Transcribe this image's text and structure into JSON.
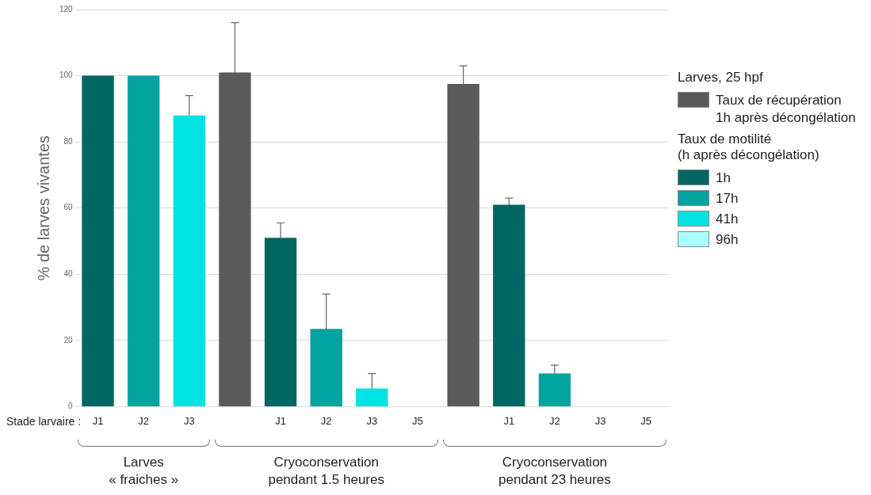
{
  "chart_data": {
    "type": "bar",
    "ylabel": "% de larves vivantes",
    "legend_title": "Larves, 25 hpf",
    "categories": [
      "J1",
      "J2",
      "J3",
      null,
      "J1",
      "J2",
      "J3",
      "J5",
      null,
      "J1",
      "J2",
      "J3",
      "J5"
    ],
    "series": [
      {
        "name": "Taux de récupération\n1h après décongélation",
        "color": "#5a5a5a",
        "values": [
          null,
          null,
          null,
          101,
          null,
          null,
          null,
          null,
          97.5,
          null,
          null,
          null,
          null
        ],
        "errors": [
          null,
          null,
          null,
          15,
          null,
          null,
          null,
          null,
          5.5,
          null,
          null,
          null,
          null
        ]
      },
      {
        "name": "1h",
        "color": "#006663",
        "values": [
          100,
          null,
          null,
          null,
          51,
          null,
          null,
          null,
          null,
          61,
          null,
          null,
          null
        ],
        "errors": [
          null,
          null,
          null,
          null,
          4.5,
          null,
          null,
          null,
          null,
          2,
          null,
          null,
          null
        ]
      },
      {
        "name": "17h",
        "color": "#00a39d",
        "values": [
          null,
          100,
          null,
          null,
          null,
          23.5,
          null,
          null,
          null,
          null,
          10,
          null,
          null
        ],
        "errors": [
          null,
          null,
          null,
          null,
          null,
          10.5,
          null,
          null,
          null,
          null,
          2.5,
          null,
          null
        ]
      },
      {
        "name": "41h",
        "color": "#00e3e3",
        "values": [
          null,
          null,
          88,
          null,
          null,
          null,
          5.5,
          null,
          null,
          null,
          null,
          0,
          null
        ],
        "errors": [
          null,
          null,
          6,
          null,
          null,
          null,
          4.5,
          null,
          null,
          null,
          null,
          null,
          null
        ]
      },
      {
        "name": "96h",
        "color": "#aaffff",
        "values": [
          null,
          null,
          null,
          null,
          null,
          null,
          null,
          0,
          null,
          null,
          null,
          null,
          0
        ]
      }
    ],
    "ylim": [
      0,
      120
    ],
    "yticks": [
      0,
      20,
      40,
      60,
      80,
      100,
      120
    ],
    "grid": "y",
    "legend": "right",
    "annotations": [
      "Stade larvaire :",
      "Taux de motilité\n(h après décongélation)",
      "Larves\n« fraiches »",
      "Cryoconservation\npendant 1.5 heures",
      "Cryoconservation\npendant 23 heures"
    ]
  }
}
